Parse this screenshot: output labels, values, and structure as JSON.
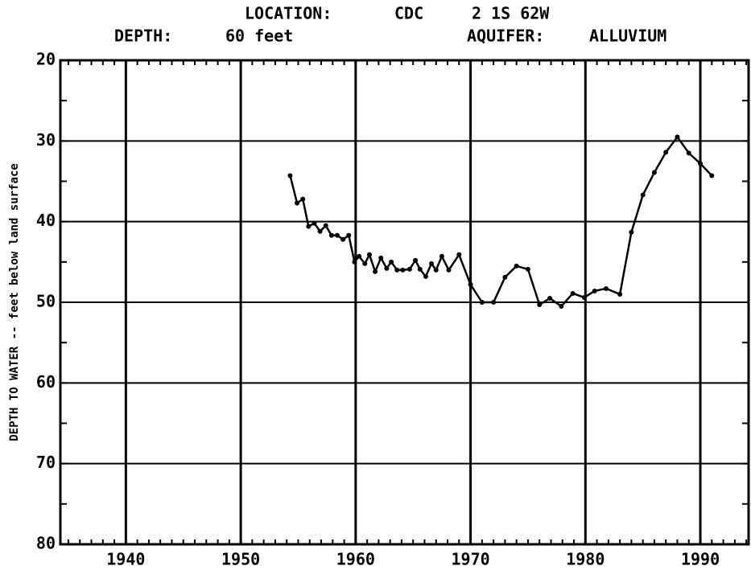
{
  "chart_data": {
    "type": "line",
    "header": {
      "location_label": "LOCATION:",
      "location_code": "CDC",
      "location_value": "2 1S 62W",
      "depth_label": "DEPTH:",
      "depth_value": "60 feet",
      "aquifer_label": "AQUIFER:",
      "aquifer_value": "ALLUVIUM"
    },
    "y_label": "DEPTH TO WATER -- feet below land surface",
    "x": [
      1954.3,
      1954.9,
      1955.4,
      1955.9,
      1956.4,
      1956.9,
      1957.4,
      1957.9,
      1958.4,
      1958.9,
      1959.4,
      1959.9,
      1960.3,
      1960.8,
      1961.2,
      1961.7,
      1962.2,
      1962.7,
      1963.1,
      1963.6,
      1964.1,
      1964.7,
      1965.2,
      1965.6,
      1966.1,
      1966.6,
      1967,
      1967.5,
      1968.1,
      1969,
      1970,
      1971,
      1972,
      1973,
      1974,
      1975,
      1976,
      1976.9,
      1977.9,
      1978.9,
      1979.9,
      1980.8,
      1981.8,
      1983,
      1984,
      1985,
      1986,
      1987,
      1988,
      1989,
      1990,
      1991
    ],
    "series": [
      {
        "color": "#000000",
        "values": [
          34.3,
          37.7,
          37.2,
          40.6,
          40.2,
          41.2,
          40.5,
          41.7,
          41.7,
          42.2,
          41.7,
          45,
          44.3,
          45.2,
          44.1,
          46.2,
          44.5,
          45.8,
          45,
          46,
          46,
          45.9,
          44.8,
          45.9,
          46.8,
          45.2,
          46,
          44.3,
          46,
          44.1,
          47.8,
          50,
          50,
          46.9,
          45.5,
          45.9,
          50.3,
          49.5,
          50.5,
          48.9,
          49.4,
          48.6,
          48.3,
          49,
          41.3,
          36.7,
          33.9,
          31.4,
          29.5,
          31.5,
          32.8,
          34.3
        ]
      }
    ],
    "xlim": [
      1934.3,
      1994.2
    ],
    "xticks": [
      1940,
      1950,
      1960,
      1970,
      1980,
      1990
    ],
    "ylim": [
      20,
      80
    ],
    "yticks": [
      20,
      30,
      40,
      50,
      60,
      70,
      80
    ],
    "y_inverted": true,
    "grid": true
  }
}
